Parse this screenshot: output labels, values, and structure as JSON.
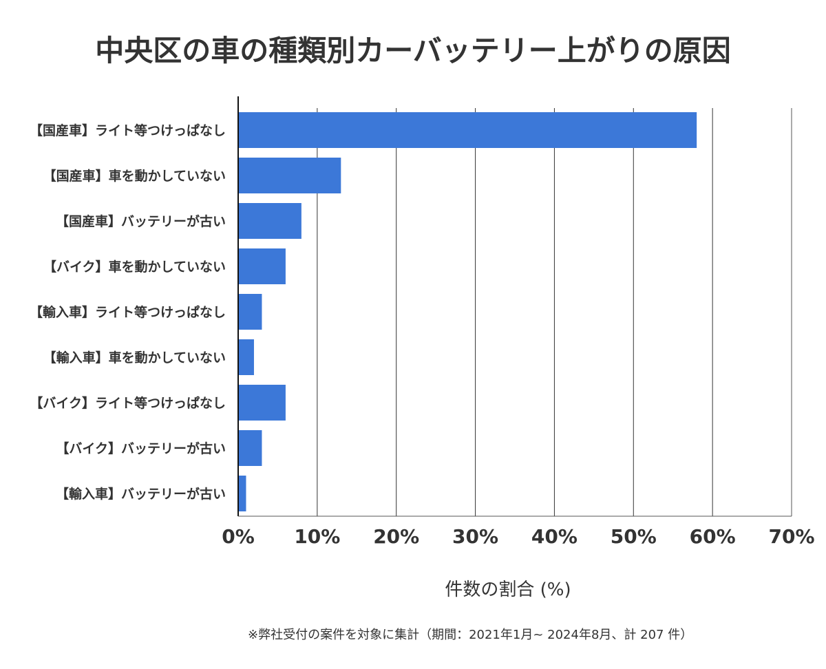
{
  "chart_data": {
    "type": "bar",
    "orientation": "horizontal",
    "title": "中央区の車の種類別カーバッテリー上がりの原因",
    "categories": [
      "【国産車】ライト等つけっぱなし",
      "【国産車】車を動かしていない",
      "【国産車】バッテリーが古い",
      "【バイク】車を動かしていない",
      "【輸入車】ライト等つけっぱなし",
      "【輸入車】車を動かしていない",
      "【バイク】ライト等つけっぱなし",
      "【バイク】バッテリーが古い",
      "【輸入車】バッテリーが古い"
    ],
    "values": [
      58.0,
      13.0,
      8.0,
      6.0,
      3.0,
      2.0,
      6.0,
      3.0,
      1.0
    ],
    "xlabel": "件数の割合 (%)",
    "ylabel": "",
    "xlim": [
      0,
      70
    ],
    "ticks": [
      "0%",
      "10%",
      "20%",
      "30%",
      "40%",
      "50%",
      "60%",
      "70%"
    ],
    "grid": true,
    "bar_color": "#3c78d8",
    "note": "※弊社受付の案件を対象に集計（期間：2021年1月~ 2024年8月、計 207 件）"
  }
}
